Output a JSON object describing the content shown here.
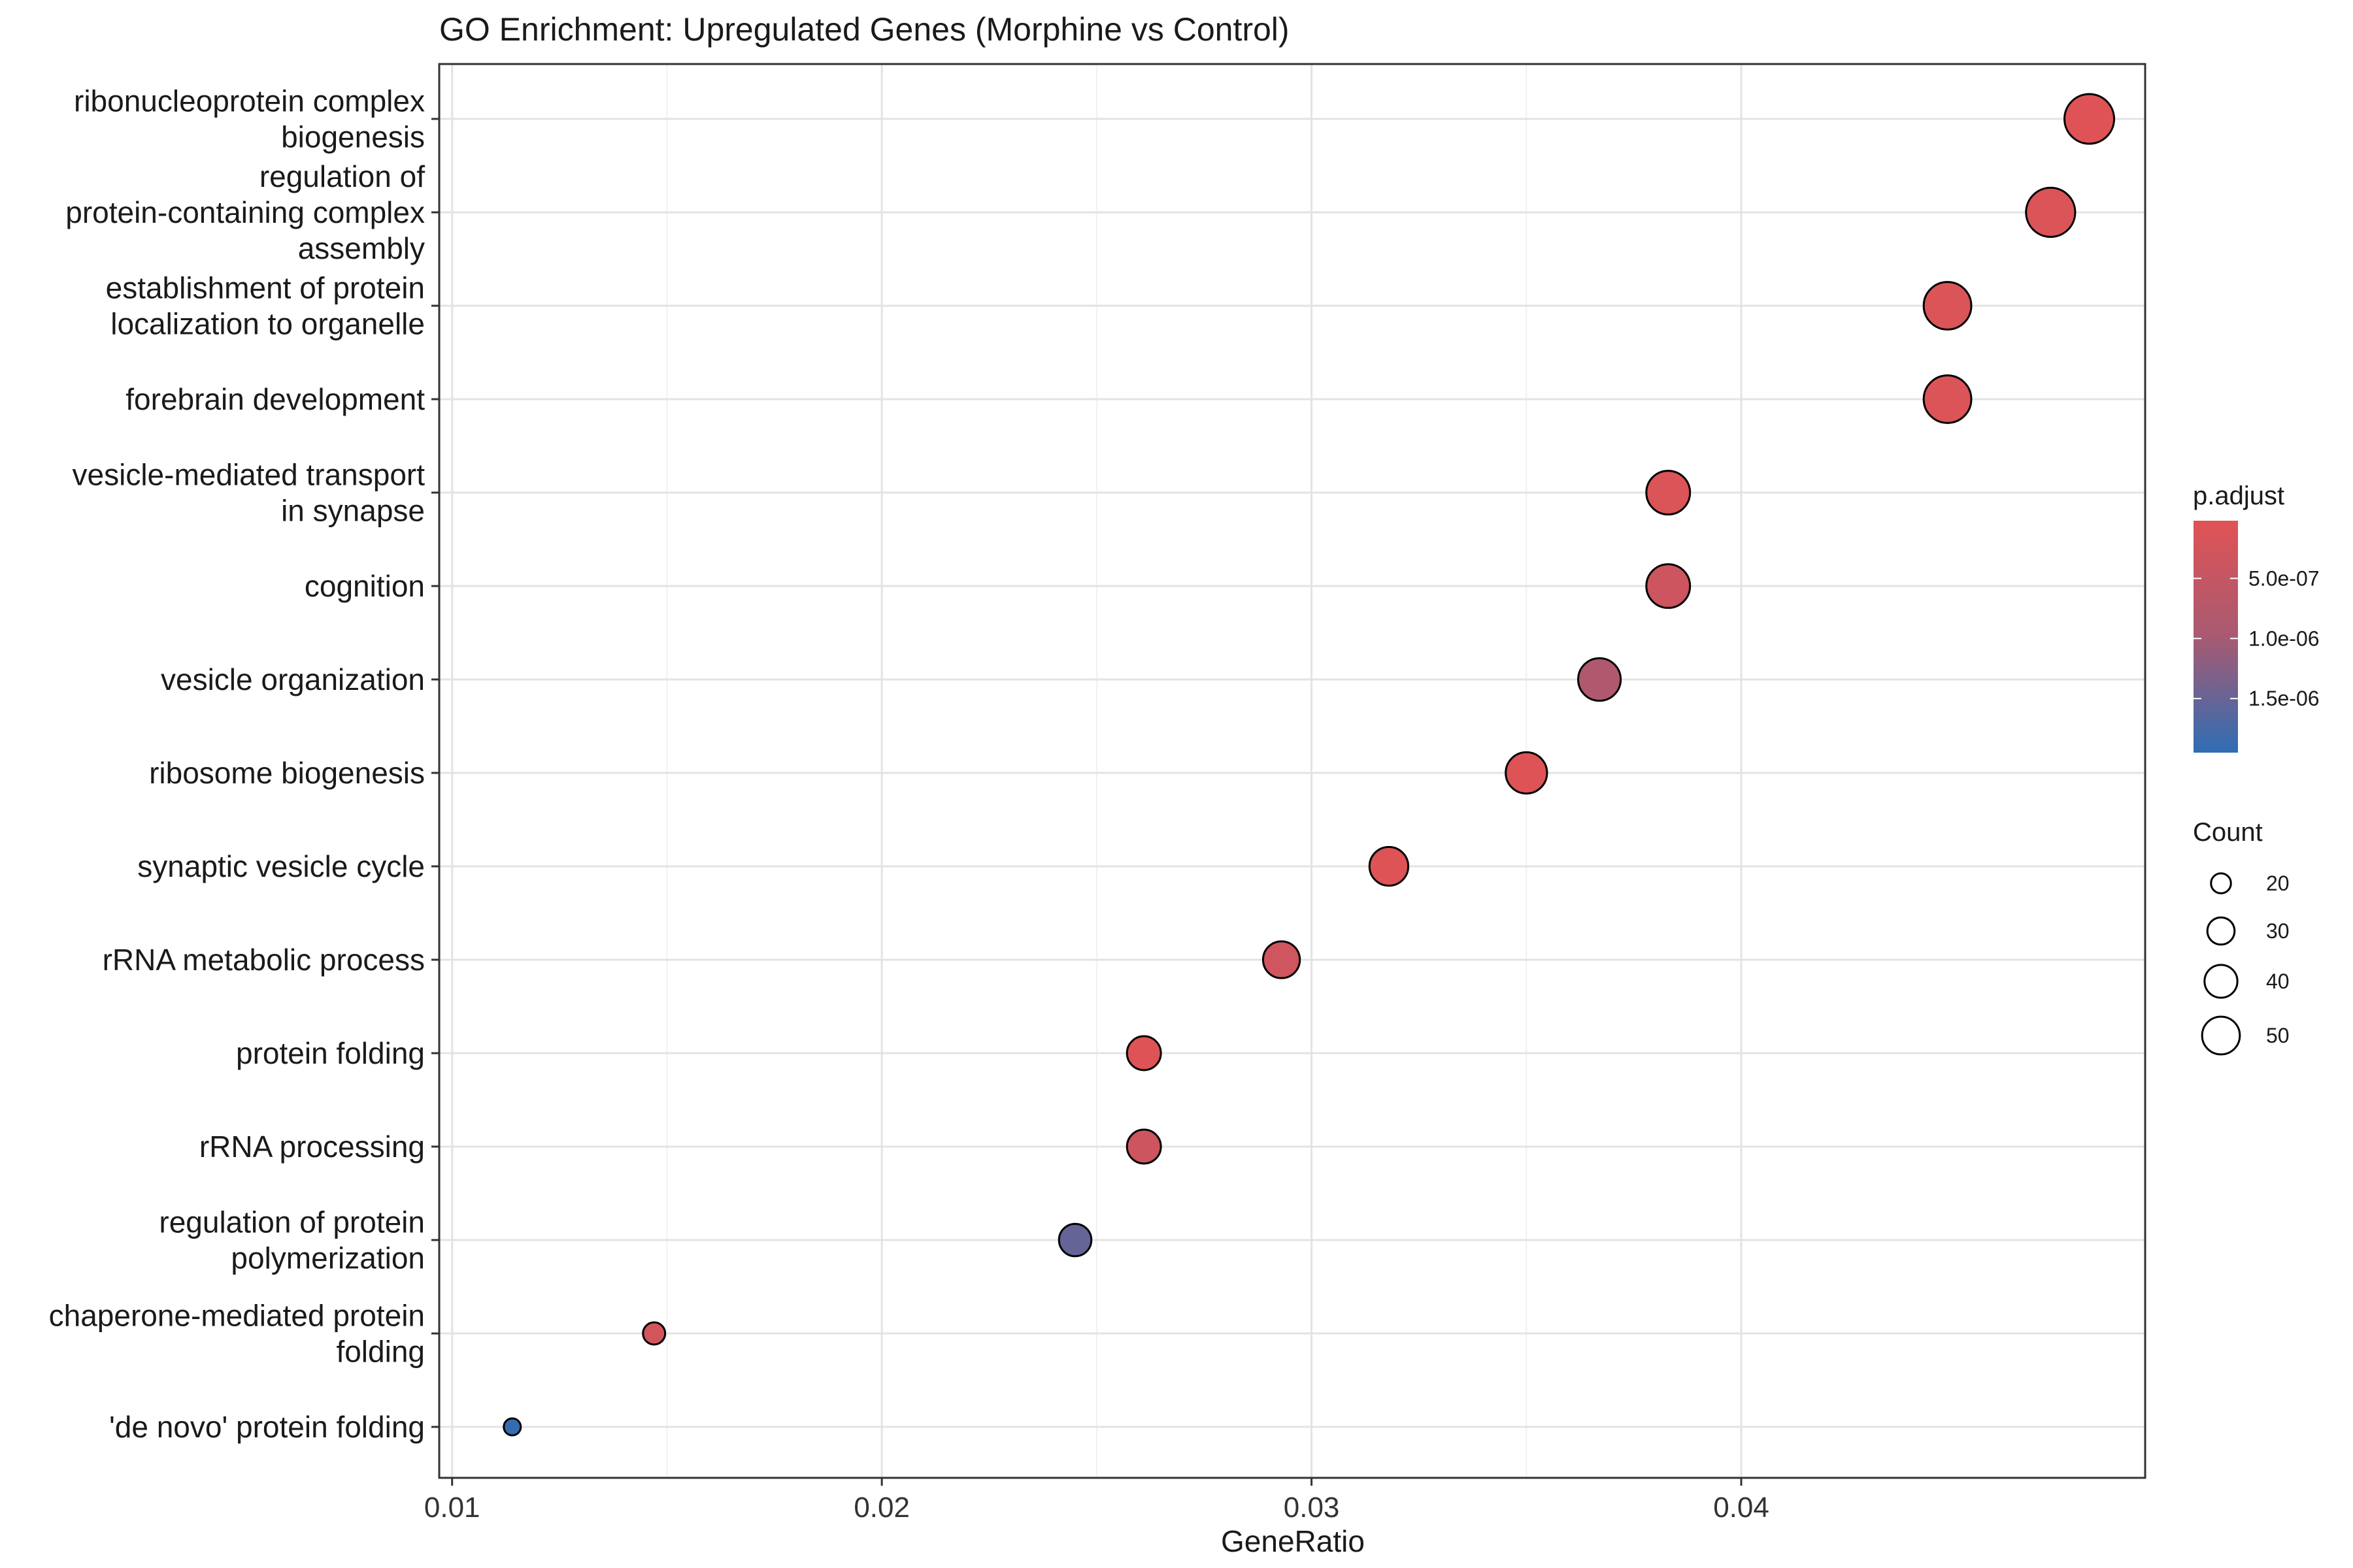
{
  "chart_data": {
    "type": "scatter",
    "title": "GO Enrichment: Upregulated Genes (Morphine vs Control)",
    "xlabel": "GeneRatio",
    "ylabel": "",
    "xlim": [
      0.0097,
      0.0494
    ],
    "xticks": [
      0.01,
      0.02,
      0.03,
      0.04
    ],
    "xtick_labels": [
      "0.01",
      "0.02",
      "0.03",
      "0.04"
    ],
    "grid": true,
    "legend_position": "right",
    "categories": [
      [
        "ribonucleoprotein complex",
        "biogenesis"
      ],
      [
        "regulation of",
        "protein-containing complex",
        "assembly"
      ],
      [
        "establishment of protein",
        "localization to organelle"
      ],
      [
        "forebrain development"
      ],
      [
        "vesicle-mediated transport",
        "in synapse"
      ],
      [
        "cognition"
      ],
      [
        "vesicle organization"
      ],
      [
        "ribosome biogenesis"
      ],
      [
        "synaptic vesicle cycle"
      ],
      [
        "rRNA metabolic process"
      ],
      [
        "protein folding"
      ],
      [
        "rRNA processing"
      ],
      [
        "regulation of protein",
        "polymerization"
      ],
      [
        "chaperone-mediated protein",
        "folding"
      ],
      [
        "'de novo' protein folding"
      ]
    ],
    "points": [
      {
        "x": 0.0481,
        "count": 57,
        "p_adjust": 2e-08
      },
      {
        "x": 0.0472,
        "count": 56,
        "p_adjust": 1e-07
      },
      {
        "x": 0.0448,
        "count": 53,
        "p_adjust": 1e-07
      },
      {
        "x": 0.0448,
        "count": 53,
        "p_adjust": 1e-07
      },
      {
        "x": 0.0383,
        "count": 46,
        "p_adjust": 1e-07
      },
      {
        "x": 0.0383,
        "count": 46,
        "p_adjust": 3.5e-07
      },
      {
        "x": 0.0367,
        "count": 44,
        "p_adjust": 8.5e-07
      },
      {
        "x": 0.035,
        "count": 42,
        "p_adjust": 5e-08
      },
      {
        "x": 0.0318,
        "count": 38,
        "p_adjust": 5e-08
      },
      {
        "x": 0.0293,
        "count": 35,
        "p_adjust": 3e-07
      },
      {
        "x": 0.0261,
        "count": 31,
        "p_adjust": 5e-08
      },
      {
        "x": 0.0261,
        "count": 31,
        "p_adjust": 3.5e-07
      },
      {
        "x": 0.0245,
        "count": 29,
        "p_adjust": 1.55e-06
      },
      {
        "x": 0.0147,
        "count": 18,
        "p_adjust": 2.5e-07
      },
      {
        "x": 0.0114,
        "count": 14,
        "p_adjust": 1.95e-06
      }
    ],
    "color_scale": {
      "title": "p.adjust",
      "domain": [
        0,
        2e-06
      ],
      "low_color": "#e05355",
      "mid_color": "#a85a72",
      "high_color": "#2f6db4",
      "ticks": [
        5e-07,
        1e-06,
        1.5e-06
      ],
      "tick_labels": [
        "5.0e-07",
        "1.0e-06",
        "1.5e-06"
      ]
    },
    "size_scale": {
      "title": "Count",
      "range": [
        14,
        57
      ],
      "breaks": [
        20,
        30,
        40,
        50
      ],
      "break_labels": [
        "20",
        "30",
        "40",
        "50"
      ]
    }
  }
}
